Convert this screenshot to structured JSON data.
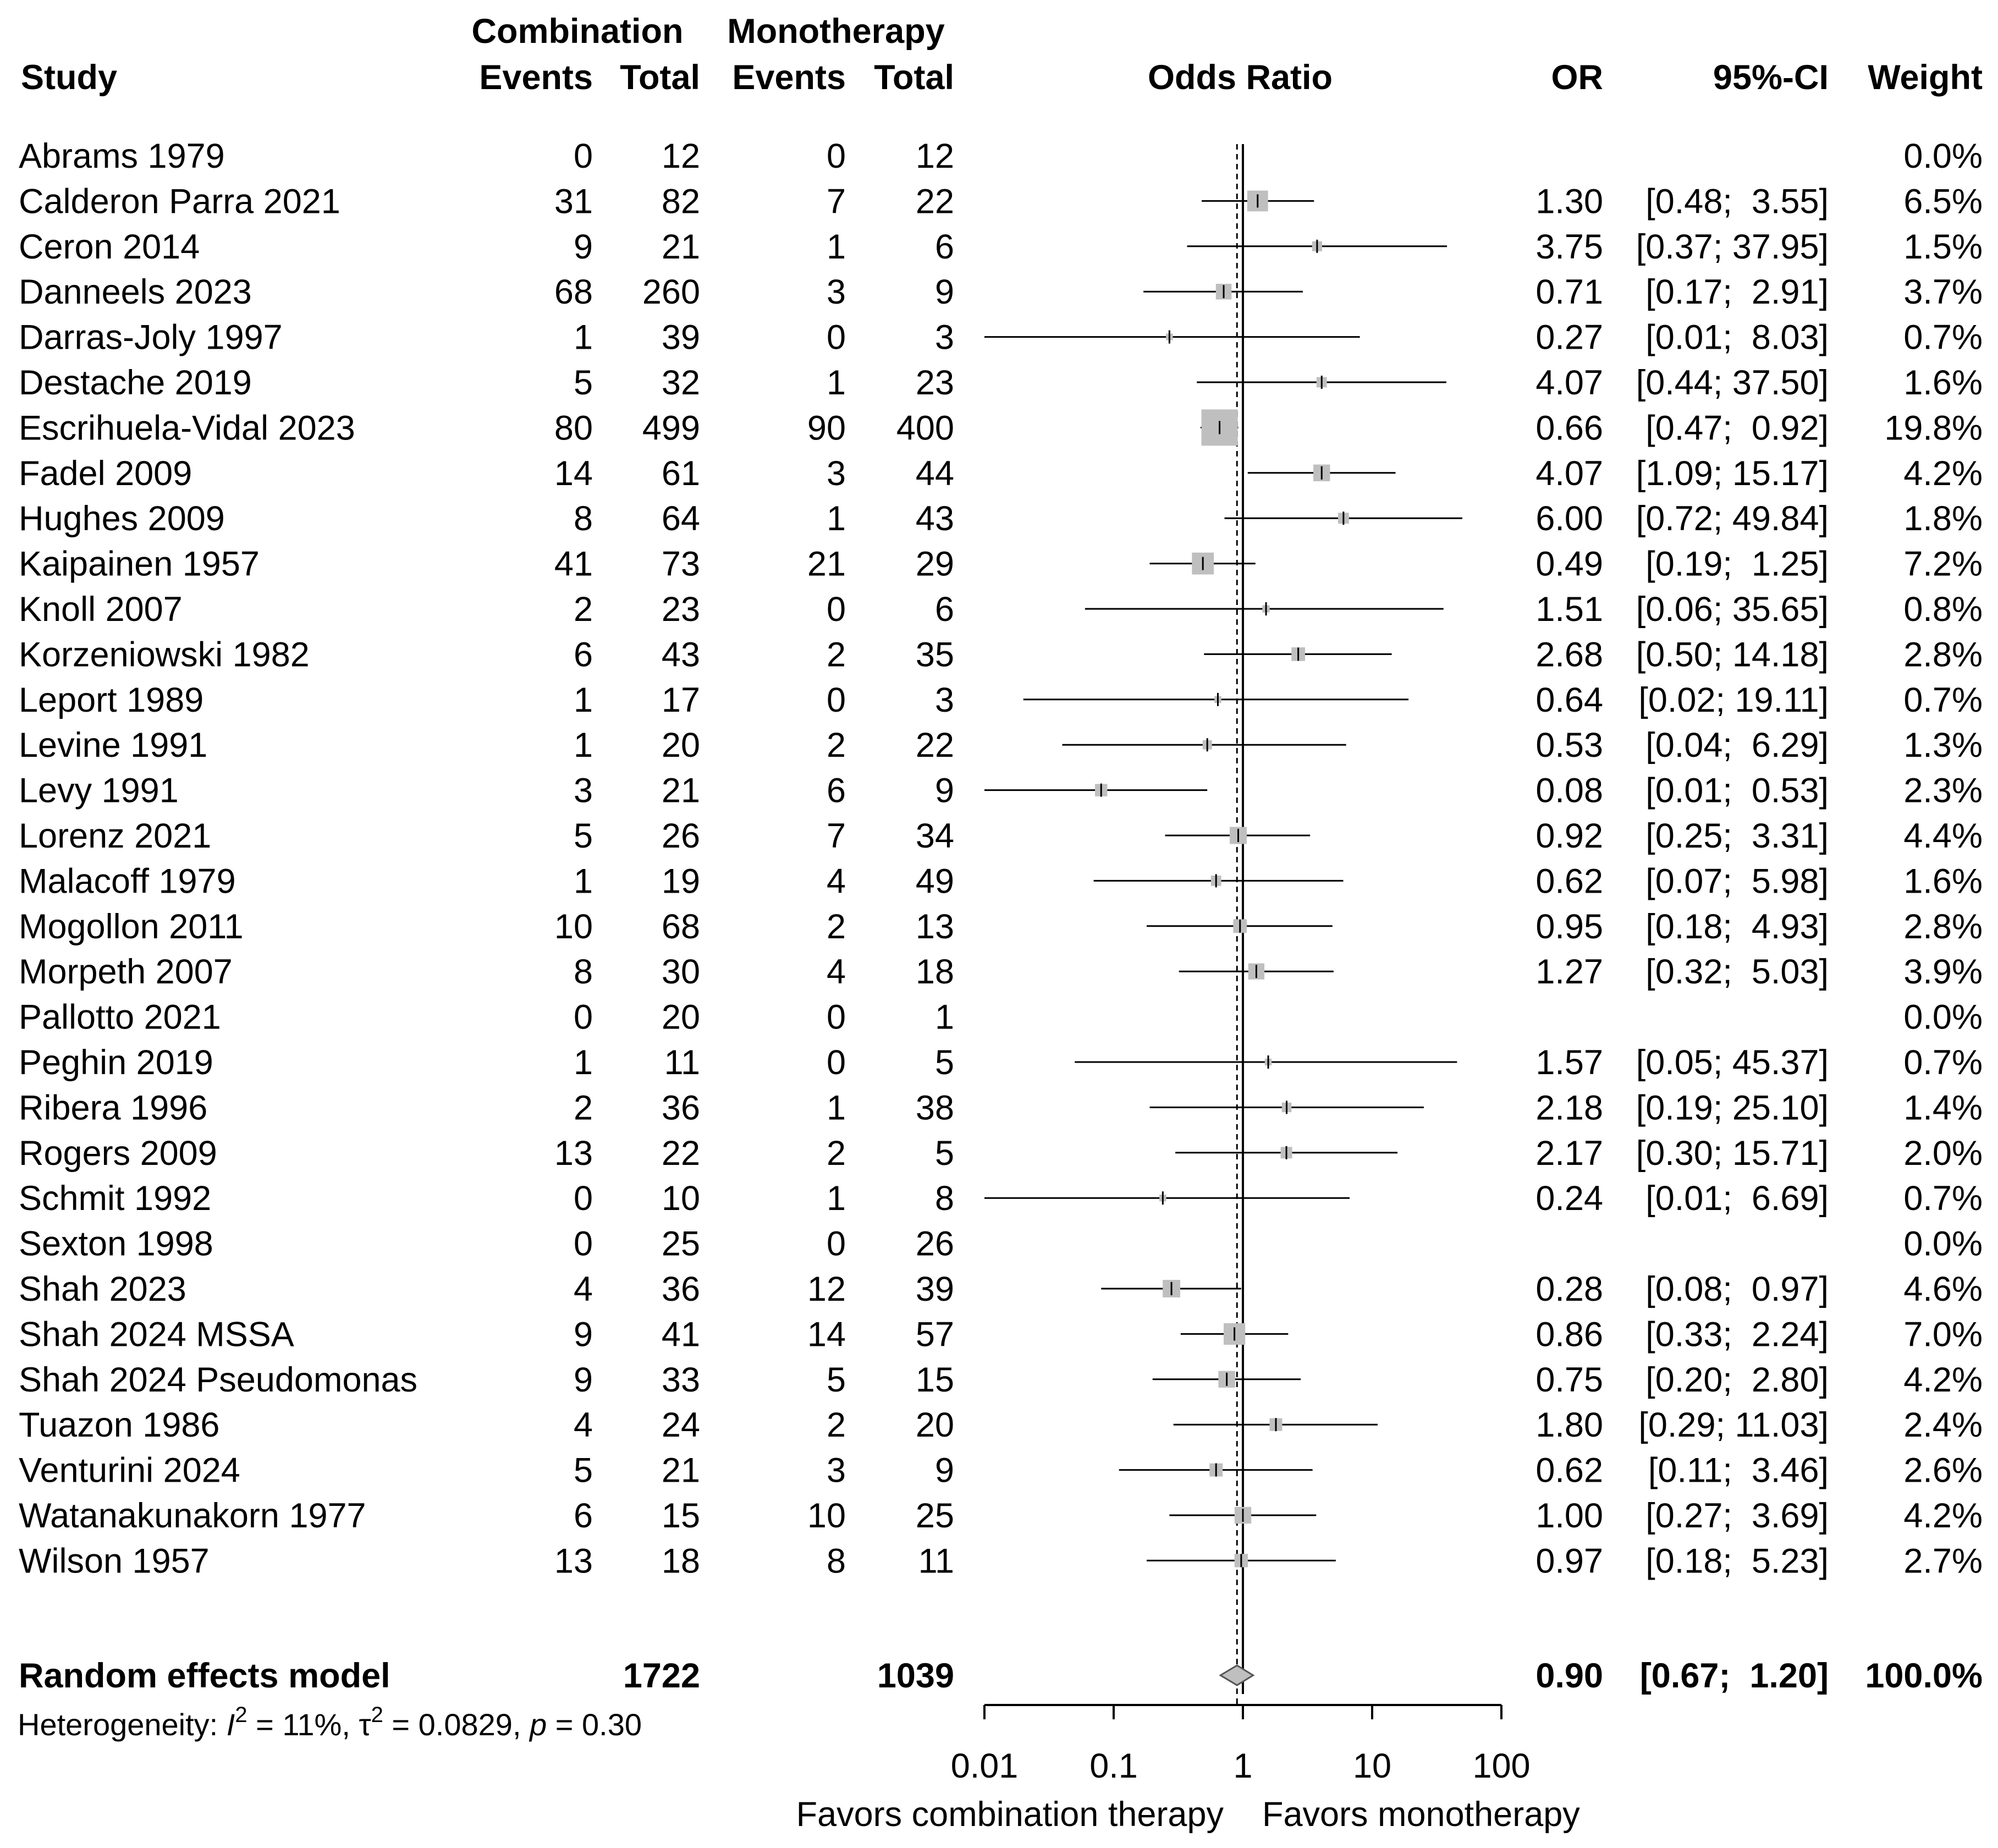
{
  "chart_data": {
    "type": "forest",
    "headers": {
      "study": "Study",
      "group1": "Combination",
      "group2": "Monotherapy",
      "events": "Events",
      "total": "Total",
      "plot": "Odds Ratio",
      "or": "OR",
      "ci": "95%-CI",
      "weight": "Weight"
    },
    "studies": [
      {
        "study": "Abrams 1979",
        "e1": "0",
        "n1": "12",
        "e2": "0",
        "n2": "12",
        "or": null,
        "lo": null,
        "hi": null,
        "or_text": "",
        "ci_text": "",
        "weight": "0.0%"
      },
      {
        "study": "Calderon Parra 2021",
        "e1": "31",
        "n1": "82",
        "e2": "7",
        "n2": "22",
        "or": 1.3,
        "lo": 0.48,
        "hi": 3.55,
        "or_text": "1.30",
        "ci_text": "[0.48;  3.55]",
        "weight": "6.5%"
      },
      {
        "study": "Ceron 2014",
        "e1": "9",
        "n1": "21",
        "e2": "1",
        "n2": "6",
        "or": 3.75,
        "lo": 0.37,
        "hi": 37.95,
        "or_text": "3.75",
        "ci_text": "[0.37; 37.95]",
        "weight": "1.5%"
      },
      {
        "study": "Danneels 2023",
        "e1": "68",
        "n1": "260",
        "e2": "3",
        "n2": "9",
        "or": 0.71,
        "lo": 0.17,
        "hi": 2.91,
        "or_text": "0.71",
        "ci_text": "[0.17;  2.91]",
        "weight": "3.7%"
      },
      {
        "study": "Darras-Joly 1997",
        "e1": "1",
        "n1": "39",
        "e2": "0",
        "n2": "3",
        "or": 0.27,
        "lo": 0.01,
        "hi": 8.03,
        "or_text": "0.27",
        "ci_text": "[0.01;  8.03]",
        "weight": "0.7%"
      },
      {
        "study": "Destache 2019",
        "e1": "5",
        "n1": "32",
        "e2": "1",
        "n2": "23",
        "or": 4.07,
        "lo": 0.44,
        "hi": 37.5,
        "or_text": "4.07",
        "ci_text": "[0.44; 37.50]",
        "weight": "1.6%"
      },
      {
        "study": "Escrihuela-Vidal 2023",
        "e1": "80",
        "n1": "499",
        "e2": "90",
        "n2": "400",
        "or": 0.66,
        "lo": 0.47,
        "hi": 0.92,
        "or_text": "0.66",
        "ci_text": "[0.47;  0.92]",
        "weight": "19.8%"
      },
      {
        "study": "Fadel 2009",
        "e1": "14",
        "n1": "61",
        "e2": "3",
        "n2": "44",
        "or": 4.07,
        "lo": 1.09,
        "hi": 15.17,
        "or_text": "4.07",
        "ci_text": "[1.09; 15.17]",
        "weight": "4.2%"
      },
      {
        "study": "Hughes 2009",
        "e1": "8",
        "n1": "64",
        "e2": "1",
        "n2": "43",
        "or": 6.0,
        "lo": 0.72,
        "hi": 49.84,
        "or_text": "6.00",
        "ci_text": "[0.72; 49.84]",
        "weight": "1.8%"
      },
      {
        "study": "Kaipainen 1957",
        "e1": "41",
        "n1": "73",
        "e2": "21",
        "n2": "29",
        "or": 0.49,
        "lo": 0.19,
        "hi": 1.25,
        "or_text": "0.49",
        "ci_text": "[0.19;  1.25]",
        "weight": "7.2%"
      },
      {
        "study": "Knoll 2007",
        "e1": "2",
        "n1": "23",
        "e2": "0",
        "n2": "6",
        "or": 1.51,
        "lo": 0.06,
        "hi": 35.65,
        "or_text": "1.51",
        "ci_text": "[0.06; 35.65]",
        "weight": "0.8%"
      },
      {
        "study": "Korzeniowski 1982",
        "e1": "6",
        "n1": "43",
        "e2": "2",
        "n2": "35",
        "or": 2.68,
        "lo": 0.5,
        "hi": 14.18,
        "or_text": "2.68",
        "ci_text": "[0.50; 14.18]",
        "weight": "2.8%"
      },
      {
        "study": "Leport 1989",
        "e1": "1",
        "n1": "17",
        "e2": "0",
        "n2": "3",
        "or": 0.64,
        "lo": 0.02,
        "hi": 19.11,
        "or_text": "0.64",
        "ci_text": "[0.02; 19.11]",
        "weight": "0.7%"
      },
      {
        "study": "Levine 1991",
        "e1": "1",
        "n1": "20",
        "e2": "2",
        "n2": "22",
        "or": 0.53,
        "lo": 0.04,
        "hi": 6.29,
        "or_text": "0.53",
        "ci_text": "[0.04;  6.29]",
        "weight": "1.3%"
      },
      {
        "study": "Levy 1991",
        "e1": "3",
        "n1": "21",
        "e2": "6",
        "n2": "9",
        "or": 0.08,
        "lo": 0.01,
        "hi": 0.53,
        "or_text": "0.08",
        "ci_text": "[0.01;  0.53]",
        "weight": "2.3%"
      },
      {
        "study": "Lorenz 2021",
        "e1": "5",
        "n1": "26",
        "e2": "7",
        "n2": "34",
        "or": 0.92,
        "lo": 0.25,
        "hi": 3.31,
        "or_text": "0.92",
        "ci_text": "[0.25;  3.31]",
        "weight": "4.4%"
      },
      {
        "study": "Malacoff 1979",
        "e1": "1",
        "n1": "19",
        "e2": "4",
        "n2": "49",
        "or": 0.62,
        "lo": 0.07,
        "hi": 5.98,
        "or_text": "0.62",
        "ci_text": "[0.07;  5.98]",
        "weight": "1.6%"
      },
      {
        "study": "Mogollon 2011",
        "e1": "10",
        "n1": "68",
        "e2": "2",
        "n2": "13",
        "or": 0.95,
        "lo": 0.18,
        "hi": 4.93,
        "or_text": "0.95",
        "ci_text": "[0.18;  4.93]",
        "weight": "2.8%"
      },
      {
        "study": "Morpeth 2007",
        "e1": "8",
        "n1": "30",
        "e2": "4",
        "n2": "18",
        "or": 1.27,
        "lo": 0.32,
        "hi": 5.03,
        "or_text": "1.27",
        "ci_text": "[0.32;  5.03]",
        "weight": "3.9%"
      },
      {
        "study": "Pallotto 2021",
        "e1": "0",
        "n1": "20",
        "e2": "0",
        "n2": "1",
        "or": null,
        "lo": null,
        "hi": null,
        "or_text": "",
        "ci_text": "",
        "weight": "0.0%"
      },
      {
        "study": "Peghin 2019",
        "e1": "1",
        "n1": "11",
        "e2": "0",
        "n2": "5",
        "or": 1.57,
        "lo": 0.05,
        "hi": 45.37,
        "or_text": "1.57",
        "ci_text": "[0.05; 45.37]",
        "weight": "0.7%"
      },
      {
        "study": "Ribera 1996",
        "e1": "2",
        "n1": "36",
        "e2": "1",
        "n2": "38",
        "or": 2.18,
        "lo": 0.19,
        "hi": 25.1,
        "or_text": "2.18",
        "ci_text": "[0.19; 25.10]",
        "weight": "1.4%"
      },
      {
        "study": "Rogers 2009",
        "e1": "13",
        "n1": "22",
        "e2": "2",
        "n2": "5",
        "or": 2.17,
        "lo": 0.3,
        "hi": 15.71,
        "or_text": "2.17",
        "ci_text": "[0.30; 15.71]",
        "weight": "2.0%"
      },
      {
        "study": "Schmit 1992",
        "e1": "0",
        "n1": "10",
        "e2": "1",
        "n2": "8",
        "or": 0.24,
        "lo": 0.01,
        "hi": 6.69,
        "or_text": "0.24",
        "ci_text": "[0.01;  6.69]",
        "weight": "0.7%"
      },
      {
        "study": "Sexton 1998",
        "e1": "0",
        "n1": "25",
        "e2": "0",
        "n2": "26",
        "or": null,
        "lo": null,
        "hi": null,
        "or_text": "",
        "ci_text": "",
        "weight": "0.0%"
      },
      {
        "study": "Shah 2023",
        "e1": "4",
        "n1": "36",
        "e2": "12",
        "n2": "39",
        "or": 0.28,
        "lo": 0.08,
        "hi": 0.97,
        "or_text": "0.28",
        "ci_text": "[0.08;  0.97]",
        "weight": "4.6%"
      },
      {
        "study": "Shah 2024 MSSA",
        "e1": "9",
        "n1": "41",
        "e2": "14",
        "n2": "57",
        "or": 0.86,
        "lo": 0.33,
        "hi": 2.24,
        "or_text": "0.86",
        "ci_text": "[0.33;  2.24]",
        "weight": "7.0%"
      },
      {
        "study": "Shah 2024 Pseudomonas",
        "e1": "9",
        "n1": "33",
        "e2": "5",
        "n2": "15",
        "or": 0.75,
        "lo": 0.2,
        "hi": 2.8,
        "or_text": "0.75",
        "ci_text": "[0.20;  2.80]",
        "weight": "4.2%"
      },
      {
        "study": "Tuazon 1986",
        "e1": "4",
        "n1": "24",
        "e2": "2",
        "n2": "20",
        "or": 1.8,
        "lo": 0.29,
        "hi": 11.03,
        "or_text": "1.80",
        "ci_text": "[0.29; 11.03]",
        "weight": "2.4%"
      },
      {
        "study": "Venturini 2024",
        "e1": "5",
        "n1": "21",
        "e2": "3",
        "n2": "9",
        "or": 0.62,
        "lo": 0.11,
        "hi": 3.46,
        "or_text": "0.62",
        "ci_text": "[0.11;  3.46]",
        "weight": "2.6%"
      },
      {
        "study": "Watanakunakorn 1977",
        "e1": "6",
        "n1": "15",
        "e2": "10",
        "n2": "25",
        "or": 1.0,
        "lo": 0.27,
        "hi": 3.69,
        "or_text": "1.00",
        "ci_text": "[0.27;  3.69]",
        "weight": "4.2%"
      },
      {
        "study": "Wilson 1957",
        "e1": "13",
        "n1": "18",
        "e2": "8",
        "n2": "11",
        "or": 0.97,
        "lo": 0.18,
        "hi": 5.23,
        "or_text": "0.97",
        "ci_text": "[0.18;  5.23]",
        "weight": "2.7%"
      }
    ],
    "summary": {
      "label": "Random effects model",
      "n1": "1722",
      "n2": "1039",
      "or": 0.9,
      "lo": 0.67,
      "hi": 1.2,
      "or_text": "0.90",
      "ci_text": "[0.67;  1.20]",
      "weight": "100.0%"
    },
    "heterogeneity": {
      "prefix": "Heterogeneity: ",
      "i2_symbol": "I",
      "i2_value": " = 11%, ",
      "tau2_symbol": "τ",
      "tau2_value": " = 0.0829, ",
      "p_symbol": "p",
      "p_value": " = 0.30",
      "sup": "2"
    },
    "x_axis": {
      "scale": "log",
      "ticks": [
        0.01,
        0.1,
        1,
        10,
        100
      ],
      "tick_labels": [
        "0.01",
        "0.1",
        "1",
        "10",
        "100"
      ],
      "xlim": [
        0.01,
        100
      ],
      "reference_line": 1,
      "label_left": "Favors combination therapy",
      "label_right": "Favors monotherapy"
    },
    "colors": {
      "square": "#bfbfbf",
      "diamond": "#bfbfbf",
      "line": "#000000"
    }
  }
}
